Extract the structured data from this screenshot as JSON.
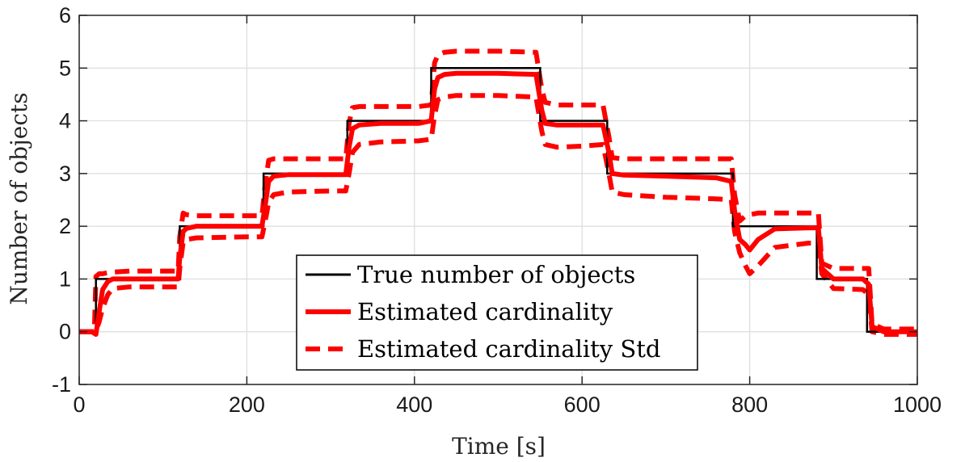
{
  "chart_data": {
    "type": "line",
    "title": "",
    "xlabel": "Time [s]",
    "ylabel": "Number of objects",
    "xlim": [
      0,
      1000
    ],
    "ylim": [
      -1,
      6
    ],
    "xticks": [
      "0",
      "200",
      "400",
      "600",
      "800",
      "1000"
    ],
    "yticks": [
      "-1",
      "0",
      "1",
      "2",
      "3",
      "4",
      "5",
      "6"
    ],
    "grid": true,
    "legend_position": "bottom-center",
    "series": [
      {
        "name": "True number of objects",
        "color": "#000000",
        "style": "solid-thin",
        "x": [
          0,
          20,
          20,
          120,
          120,
          220,
          220,
          320,
          320,
          420,
          420,
          550,
          550,
          630,
          630,
          780,
          780,
          880,
          880,
          940,
          940,
          1000
        ],
        "y": [
          0,
          0,
          1,
          1,
          2,
          2,
          3,
          3,
          4,
          4,
          5,
          5,
          4,
          4,
          3,
          3,
          2,
          2,
          1,
          1,
          0,
          0
        ]
      },
      {
        "name": "Estimated cardinality",
        "color": "#ff0000",
        "style": "solid-thick",
        "x": [
          0,
          15,
          20,
          24,
          28,
          34,
          40,
          60,
          100,
          118,
          120,
          124,
          128,
          140,
          200,
          218,
          222,
          226,
          232,
          250,
          300,
          318,
          322,
          326,
          334,
          360,
          405,
          420,
          424,
          428,
          436,
          450,
          500,
          545,
          552,
          556,
          570,
          600,
          625,
          632,
          636,
          650,
          700,
          760,
          778,
          782,
          788,
          795,
          800,
          810,
          830,
          870,
          882,
          886,
          900,
          935,
          942,
          946,
          960,
          1000
        ],
        "y": [
          0,
          0,
          -0.05,
          0.4,
          0.8,
          0.95,
          1.0,
          1.0,
          1.0,
          1.0,
          1.4,
          1.9,
          1.96,
          2.0,
          2.0,
          2.0,
          2.4,
          2.85,
          2.95,
          2.98,
          2.98,
          2.98,
          3.5,
          3.85,
          3.92,
          3.95,
          3.95,
          4.0,
          4.6,
          4.82,
          4.88,
          4.9,
          4.9,
          4.88,
          4.2,
          3.95,
          3.92,
          3.92,
          3.92,
          3.4,
          3.0,
          2.97,
          2.95,
          2.92,
          2.85,
          2.3,
          1.75,
          1.65,
          1.55,
          1.75,
          1.95,
          1.97,
          1.97,
          1.2,
          1.0,
          1.0,
          0.9,
          0.1,
          0.0,
          0.0
        ]
      },
      {
        "name": "Estimated cardinality Std",
        "color": "#ff0000",
        "style": "dashed-thick",
        "x": [
          0,
          15,
          18,
          20,
          24,
          28,
          34,
          40,
          60,
          100,
          118,
          120,
          124,
          128,
          140,
          200,
          218,
          222,
          226,
          232,
          250,
          300,
          318,
          322,
          326,
          334,
          360,
          405,
          420,
          424,
          428,
          436,
          450,
          500,
          545,
          552,
          556,
          570,
          600,
          625,
          632,
          636,
          650,
          700,
          760,
          778,
          782,
          788,
          795,
          800,
          810,
          830,
          870,
          882,
          886,
          900,
          935,
          942,
          946,
          960,
          1000
        ],
        "y_upper": [
          0,
          0,
          0.0,
          1.05,
          1.1,
          1.1,
          1.12,
          1.13,
          1.15,
          1.15,
          1.15,
          1.8,
          2.25,
          2.22,
          2.2,
          2.2,
          2.2,
          2.8,
          3.25,
          3.28,
          3.28,
          3.28,
          3.28,
          3.95,
          4.25,
          4.27,
          4.27,
          4.27,
          4.3,
          5.1,
          5.25,
          5.3,
          5.32,
          5.32,
          5.3,
          4.6,
          4.35,
          4.3,
          4.3,
          4.3,
          3.7,
          3.3,
          3.28,
          3.28,
          3.28,
          3.28,
          2.6,
          2.1,
          2.2,
          2.22,
          2.25,
          2.25,
          2.25,
          2.25,
          1.3,
          1.2,
          1.2,
          1.2,
          0.15,
          0.05,
          0.05
        ],
        "y_lower": [
          0,
          0,
          0.0,
          0.0,
          0.2,
          0.45,
          0.7,
          0.82,
          0.85,
          0.85,
          0.85,
          1.2,
          1.7,
          1.75,
          1.78,
          1.8,
          1.8,
          2.1,
          2.45,
          2.6,
          2.65,
          2.67,
          2.67,
          3.0,
          3.4,
          3.55,
          3.6,
          3.62,
          3.65,
          4.1,
          4.4,
          4.45,
          4.48,
          4.48,
          4.45,
          3.8,
          3.55,
          3.5,
          3.52,
          3.55,
          3.0,
          2.65,
          2.6,
          2.55,
          2.52,
          2.5,
          1.9,
          1.5,
          1.25,
          1.1,
          1.25,
          1.6,
          1.68,
          1.68,
          1.1,
          0.82,
          0.8,
          0.7,
          0.0,
          -0.05,
          -0.05
        ]
      }
    ]
  }
}
